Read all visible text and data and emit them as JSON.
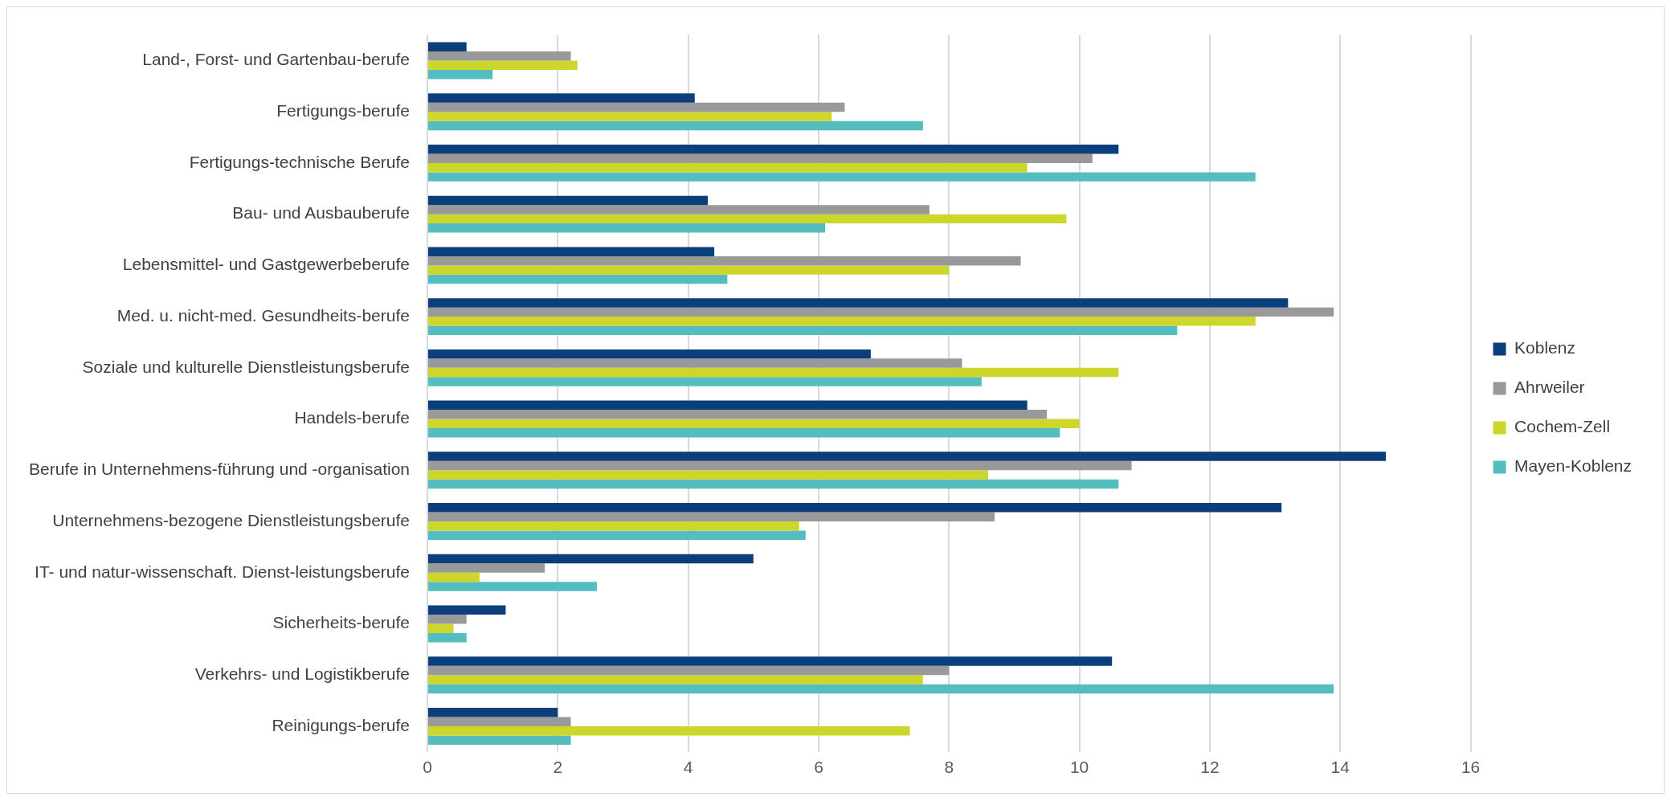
{
  "chart_data": {
    "type": "bar",
    "orientation": "horizontal",
    "categories": [
      "Land-, Forst- und Gartenbau-berufe",
      "Fertigungs-berufe",
      "Fertigungs-technische Berufe",
      "Bau- und Ausbauberufe",
      "Lebensmittel- und Gastgewerbeberufe",
      "Med. u. nicht-med. Gesundheits-berufe",
      "Soziale und kulturelle Dienstleistungsberufe",
      "Handels-berufe",
      "Berufe in Unternehmens-führung und -organisation",
      "Unternehmens-bezogene Dienstleistungsberufe",
      "IT- und natur-wissenschaft. Dienst-leistungsberufe",
      "Sicherheits-berufe",
      "Verkehrs- und Logistikberufe",
      "Reinigungs-berufe"
    ],
    "series": [
      {
        "name": "Koblenz",
        "color": "#0b3f7c",
        "values": [
          0.6,
          4.1,
          10.6,
          4.3,
          4.4,
          13.2,
          6.8,
          9.2,
          14.7,
          13.1,
          5.0,
          1.2,
          10.5,
          2.0
        ]
      },
      {
        "name": "Ahrweiler",
        "color": "#999999",
        "values": [
          2.2,
          6.4,
          10.2,
          7.7,
          9.1,
          13.9,
          8.2,
          9.5,
          10.8,
          8.7,
          1.8,
          0.6,
          8.0,
          2.2
        ]
      },
      {
        "name": "Cochem-Zell",
        "color": "#cdd62b",
        "values": [
          2.3,
          6.2,
          9.2,
          9.8,
          8.0,
          12.7,
          10.6,
          10.0,
          8.6,
          5.7,
          0.8,
          0.4,
          7.6,
          7.4
        ]
      },
      {
        "name": "Mayen-Koblenz",
        "color": "#53bdc0",
        "values": [
          1.0,
          7.6,
          12.7,
          6.1,
          4.6,
          11.5,
          8.5,
          9.7,
          10.6,
          5.8,
          2.6,
          0.6,
          13.9,
          2.2
        ]
      }
    ],
    "xlim": [
      0,
      16
    ],
    "xticks": [
      0,
      2,
      4,
      6,
      8,
      10,
      12,
      14,
      16
    ],
    "grid": "x",
    "legend": "right"
  }
}
